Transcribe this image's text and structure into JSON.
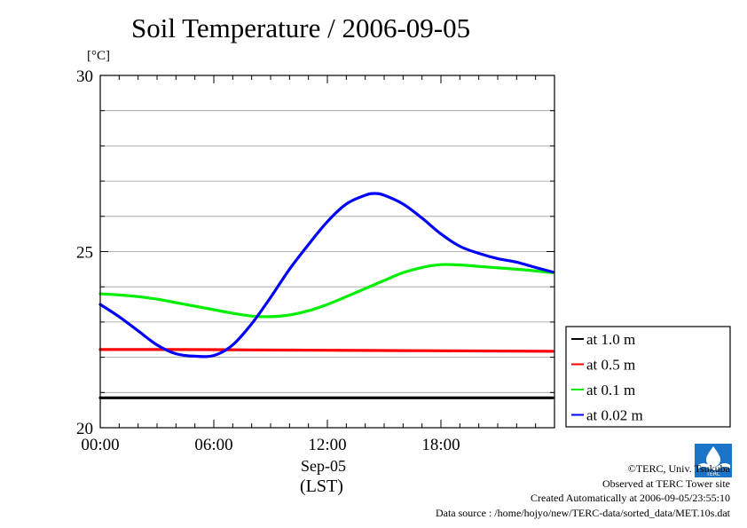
{
  "title": "Soil Temperature / 2006-09-05",
  "unit_label": "[°C]",
  "date_label": "Sep-05",
  "timezone_label": "(LST)",
  "credits": {
    "copyright": "©TERC, Univ. Tsukuba",
    "site": "Observed at TERC Tower site",
    "created": "Created Automatically at 2006-09-05/23:55:10",
    "source": "Data source : /home/hojyo/new/TERC-data/sorted_data/MET.10s.dat"
  },
  "logo_text": "TERC",
  "chart_data": {
    "type": "line",
    "title": "Soil Temperature / 2006-09-05",
    "ylabel": "[°C]",
    "xlabel": "Sep-05 (LST)",
    "xlim": [
      0,
      24
    ],
    "ylim": [
      20,
      30
    ],
    "x_ticks": [
      {
        "x": 0,
        "label": "00:00"
      },
      {
        "x": 6,
        "label": "06:00"
      },
      {
        "x": 12,
        "label": "12:00"
      },
      {
        "x": 18,
        "label": "18:00"
      }
    ],
    "y_ticks": [
      {
        "y": 20,
        "label": "20"
      },
      {
        "y": 25,
        "label": "25"
      },
      {
        "y": 30,
        "label": "30"
      }
    ],
    "grid": true,
    "legend_position": "right",
    "series": [
      {
        "name": "at 1.0 m",
        "color": "#000000",
        "x": [
          0,
          4,
          8,
          12,
          16,
          20,
          23.9
        ],
        "y": [
          20.85,
          20.85,
          20.85,
          20.85,
          20.85,
          20.85,
          20.85
        ]
      },
      {
        "name": "at 0.5 m",
        "color": "#ff0000",
        "x": [
          0,
          4,
          8,
          12,
          16,
          20,
          23.9
        ],
        "y": [
          22.22,
          22.22,
          22.21,
          22.2,
          22.19,
          22.18,
          22.17
        ]
      },
      {
        "name": "at 0.1 m",
        "color": "#00ee00",
        "x": [
          0,
          1,
          2,
          3,
          4,
          5,
          6,
          7,
          8,
          9,
          10,
          11,
          12,
          13,
          14,
          15,
          16,
          17,
          18,
          19,
          20,
          21,
          22,
          23,
          23.9
        ],
        "y": [
          23.8,
          23.77,
          23.72,
          23.65,
          23.55,
          23.45,
          23.35,
          23.25,
          23.17,
          23.15,
          23.2,
          23.32,
          23.5,
          23.72,
          23.95,
          24.18,
          24.4,
          24.55,
          24.63,
          24.62,
          24.58,
          24.54,
          24.5,
          24.45,
          24.4
        ]
      },
      {
        "name": "at 0.02 m",
        "color": "#0000ff",
        "x": [
          0,
          1,
          2,
          3,
          4,
          5,
          6,
          7,
          8,
          9,
          10,
          11,
          12,
          13,
          14,
          14.5,
          15,
          16,
          17,
          18,
          19,
          20,
          21,
          22,
          23,
          23.9
        ],
        "y": [
          23.5,
          23.15,
          22.75,
          22.35,
          22.1,
          22.03,
          22.05,
          22.35,
          22.95,
          23.7,
          24.5,
          25.2,
          25.85,
          26.35,
          26.6,
          26.65,
          26.6,
          26.35,
          25.95,
          25.5,
          25.15,
          24.95,
          24.8,
          24.7,
          24.55,
          24.42
        ]
      }
    ]
  }
}
